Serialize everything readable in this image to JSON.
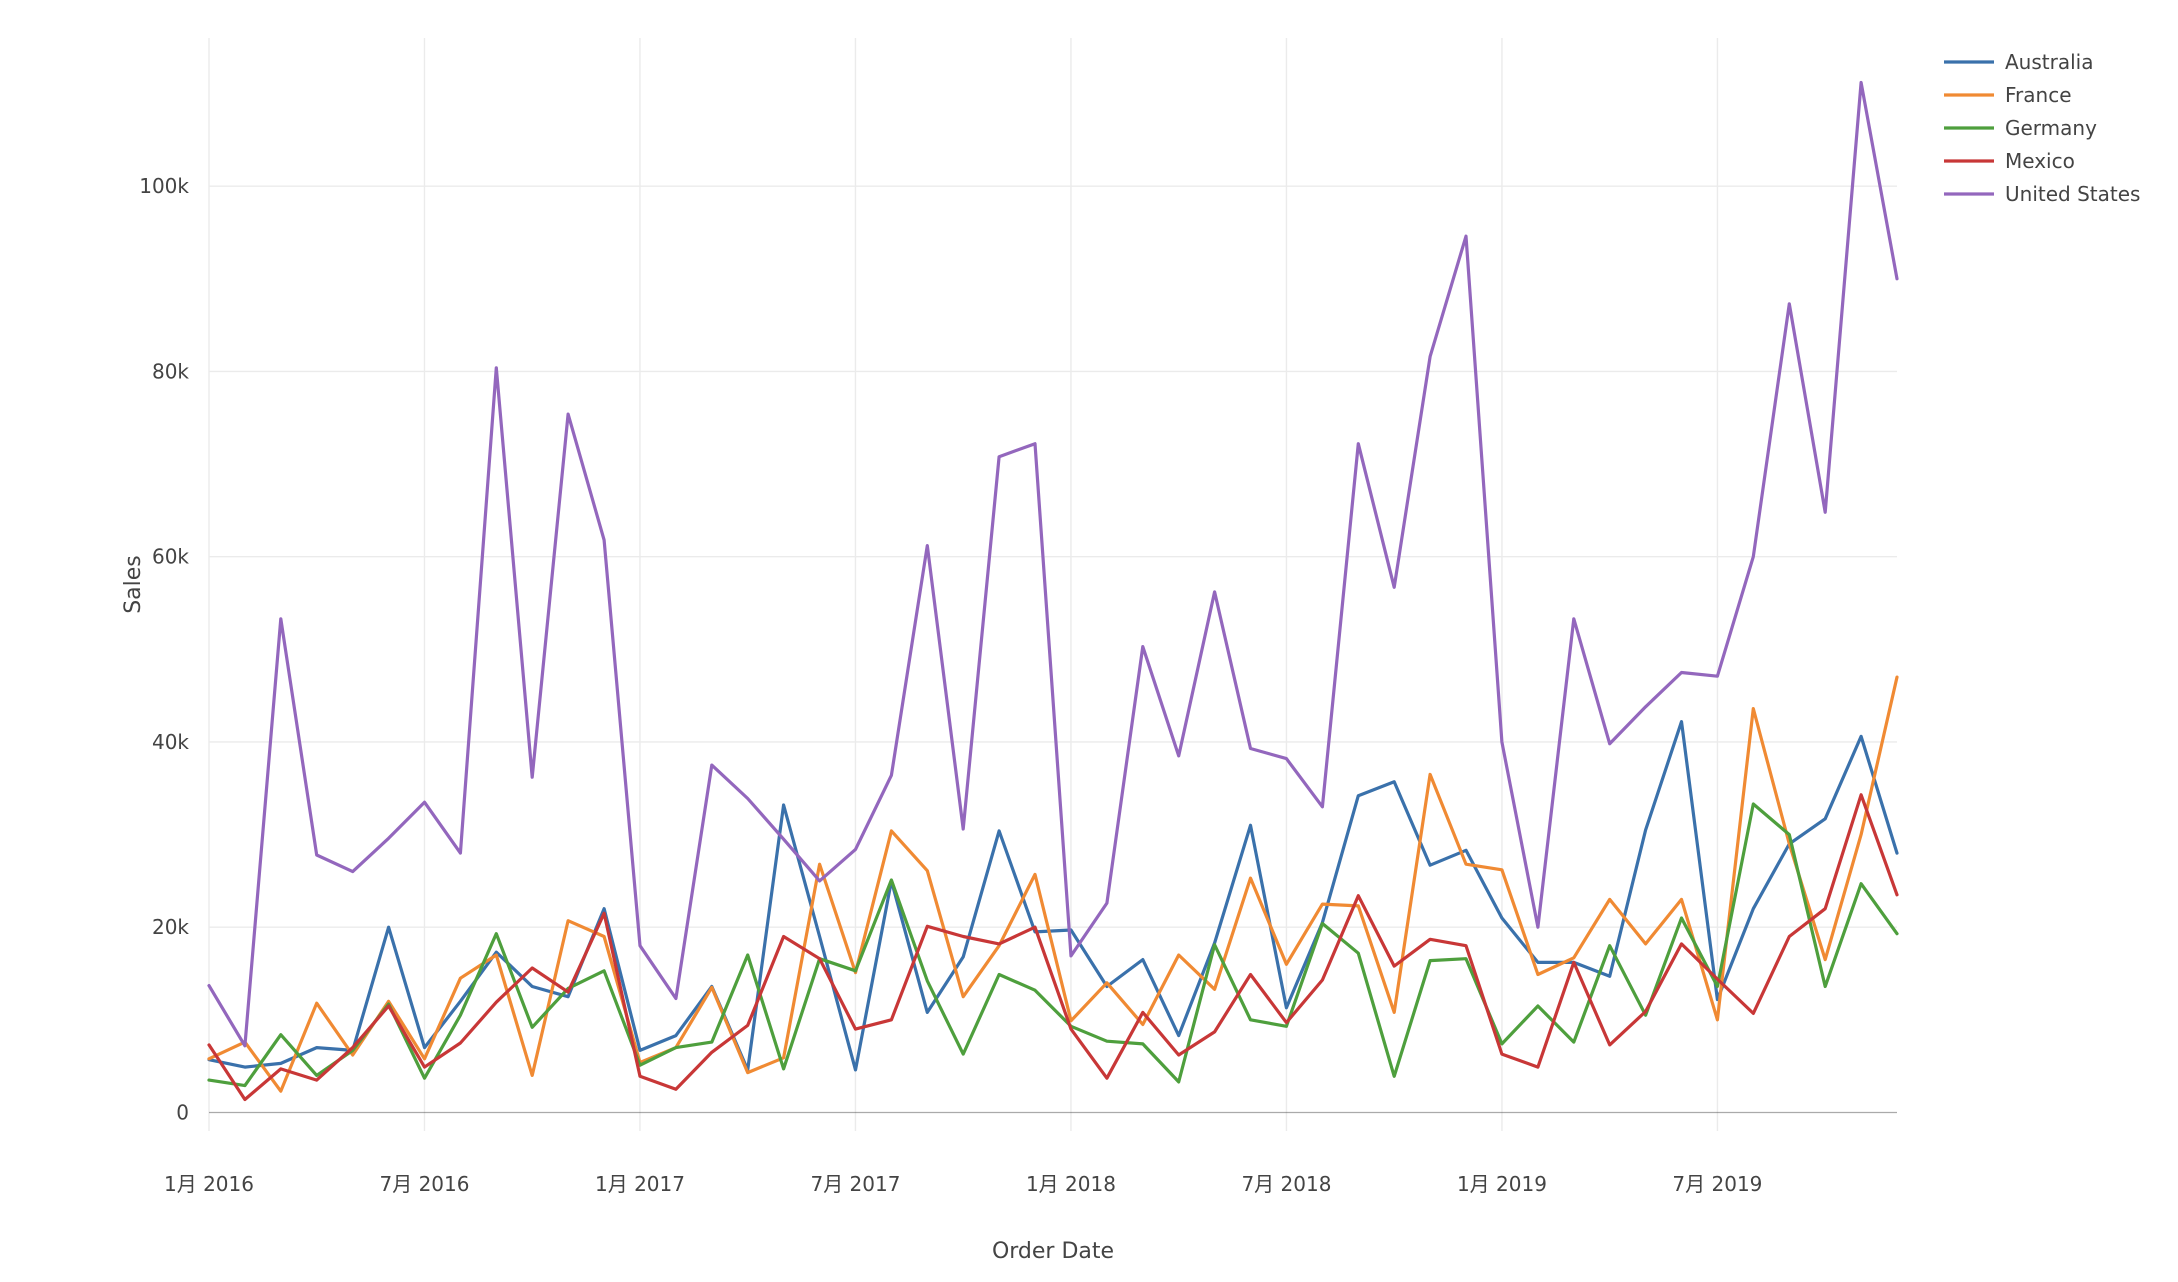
{
  "chart_data": {
    "type": "line",
    "xlabel": "Order Date",
    "ylabel": "Sales",
    "x_start": "2016-01",
    "x_end": "2019-12",
    "x_ticks": [
      "1月 2016",
      "7月 2016",
      "1月 2017",
      "7月 2017",
      "1月 2018",
      "7月 2018",
      "1月 2019",
      "7月 2019"
    ],
    "x_tick_months": [
      "2016-01",
      "2016-07",
      "2017-01",
      "2017-07",
      "2018-01",
      "2018-07",
      "2019-01",
      "2019-07"
    ],
    "ylim": [
      -2000,
      116000
    ],
    "y_ticks": [
      0,
      20000,
      40000,
      60000,
      80000,
      100000
    ],
    "y_tick_labels": [
      "0",
      "20k",
      "40k",
      "60k",
      "80k",
      "100k"
    ],
    "grid": true,
    "legend_position": "top-right",
    "x": [
      "2016-01",
      "2016-02",
      "2016-03",
      "2016-04",
      "2016-05",
      "2016-06",
      "2016-07",
      "2016-08",
      "2016-09",
      "2016-10",
      "2016-11",
      "2016-12",
      "2017-01",
      "2017-02",
      "2017-03",
      "2017-04",
      "2017-05",
      "2017-06",
      "2017-07",
      "2017-08",
      "2017-09",
      "2017-10",
      "2017-11",
      "2017-12",
      "2018-01",
      "2018-02",
      "2018-03",
      "2018-04",
      "2018-05",
      "2018-06",
      "2018-07",
      "2018-08",
      "2018-09",
      "2018-10",
      "2018-11",
      "2018-12",
      "2019-01",
      "2019-02",
      "2019-03",
      "2019-04",
      "2019-05",
      "2019-06",
      "2019-07",
      "2019-08",
      "2019-09",
      "2019-10",
      "2019-11",
      "2019-12"
    ],
    "series": [
      {
        "name": "Australia",
        "color": "#3a71ab",
        "values": [
          5700,
          4900,
          5300,
          7000,
          6700,
          20000,
          7000,
          12000,
          17300,
          13600,
          12500,
          22000,
          6700,
          8300,
          13600,
          4600,
          33200,
          19000,
          4600,
          25000,
          10800,
          16800,
          30400,
          19500,
          19700,
          13600,
          16500,
          8300,
          18300,
          31000,
          11300,
          20500,
          34200,
          35700,
          26700,
          28300,
          21000,
          16200,
          16200,
          14700,
          30500,
          42200,
          12200,
          22000,
          29000,
          31700,
          40600,
          28000
        ]
      },
      {
        "name": "France",
        "color": "#f08a33",
        "values": [
          5800,
          7600,
          2300,
          11800,
          6200,
          12000,
          5800,
          14500,
          17000,
          4000,
          20700,
          19000,
          5400,
          7000,
          13500,
          4300,
          5900,
          26800,
          15100,
          30400,
          26100,
          12500,
          18000,
          25700,
          9900,
          14000,
          9500,
          17000,
          13300,
          25300,
          16000,
          22500,
          22300,
          10800,
          36500,
          26800,
          26200,
          14900,
          16700,
          23000,
          18200,
          23000,
          10000,
          43600,
          29000,
          16500,
          30000,
          47000
        ]
      },
      {
        "name": "Germany",
        "color": "#4e9f3d",
        "values": [
          3500,
          2900,
          8400,
          4000,
          6700,
          11700,
          3700,
          10500,
          19300,
          9200,
          13400,
          15300,
          5100,
          7000,
          7600,
          17000,
          4700,
          16600,
          15300,
          25100,
          14200,
          6300,
          14900,
          13200,
          9300,
          7700,
          7400,
          3300,
          18100,
          10000,
          9300,
          20400,
          17200,
          3900,
          16400,
          16600,
          7400,
          11500,
          7600,
          18000,
          10500,
          21000,
          13600,
          33300,
          30000,
          13600,
          24700,
          19300
        ]
      },
      {
        "name": "Mexico",
        "color": "#c83737",
        "values": [
          7300,
          1400,
          4700,
          3500,
          7000,
          11500,
          4900,
          7500,
          11900,
          15600,
          13000,
          21500,
          3900,
          2500,
          6500,
          9400,
          19000,
          16600,
          9000,
          10000,
          20100,
          19000,
          18200,
          20000,
          9000,
          3700,
          10800,
          6200,
          8700,
          14900,
          9700,
          14300,
          23400,
          15800,
          18700,
          18000,
          6300,
          4900,
          16200,
          7300,
          10900,
          18200,
          14400,
          10700,
          19000,
          22000,
          34300,
          23500
        ]
      },
      {
        "name": "United States",
        "color": "#9367bd",
        "values": [
          13700,
          7200,
          53300,
          27800,
          26000,
          29600,
          33500,
          28000,
          80400,
          36200,
          75400,
          61800,
          18000,
          12300,
          37500,
          33900,
          29500,
          25000,
          28400,
          36400,
          61200,
          30600,
          70800,
          72200,
          16900,
          22600,
          50300,
          38500,
          56200,
          39300,
          38200,
          33000,
          72200,
          56700,
          81600,
          94600,
          40000,
          20000,
          53300,
          39800,
          43800,
          47500,
          47100,
          60000,
          87300,
          64800,
          111200,
          90000
        ]
      }
    ]
  }
}
